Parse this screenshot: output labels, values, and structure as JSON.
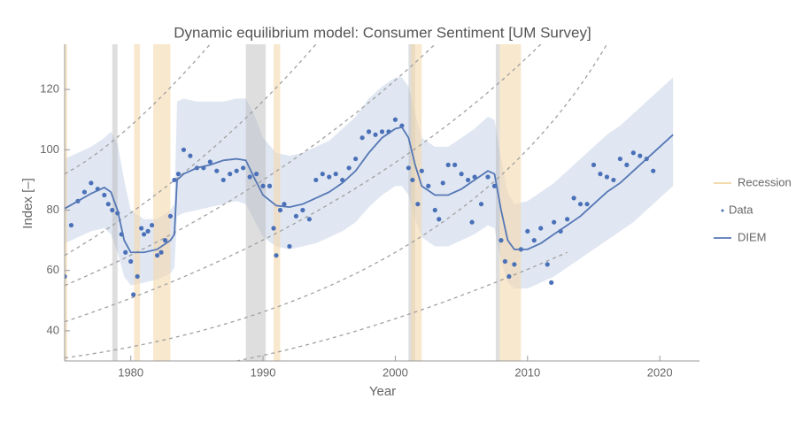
{
  "chart_data": {
    "type": "line",
    "title": "Dynamic equilibrium model: Consumer Sentiment [UM Survey]",
    "x_label": "Year",
    "y_label": "Index [–]",
    "xlim": [
      1975,
      2023
    ],
    "ylim": [
      30,
      135
    ],
    "xticks": [
      1980,
      1990,
      2000,
      2010,
      2020
    ],
    "yticks": [
      40,
      60,
      80,
      100,
      120
    ],
    "legend": "right",
    "recessions": {
      "name": "Recession",
      "color": "#f3d9ae",
      "intervals": [
        [
          1975.0,
          1975.2
        ],
        [
          1980.25,
          1980.7
        ],
        [
          1981.7,
          1983.0
        ],
        [
          1990.8,
          1991.3
        ],
        [
          2001.2,
          2002.0
        ],
        [
          2007.9,
          2009.5
        ]
      ]
    },
    "shocks": {
      "color": "#b5b5b5",
      "intervals": [
        [
          1978.6,
          1979.0
        ],
        [
          1988.7,
          1990.2
        ],
        [
          2001.0,
          2001.5
        ],
        [
          2007.6,
          2007.9
        ]
      ]
    },
    "band": {
      "color": "#dbe3f0",
      "x": [
        1975,
        1976,
        1977,
        1978,
        1978.5,
        1979,
        1979.5,
        1980,
        1981,
        1982,
        1983,
        1983.3,
        1983.5,
        1984,
        1985,
        1986,
        1987,
        1988,
        1988.7,
        1989.3,
        1990,
        1991,
        1992,
        1993,
        1994,
        1995,
        1996,
        1997,
        1998,
        1999,
        2000,
        2000.5,
        2001,
        2001.5,
        2002,
        2003,
        2004,
        2005,
        2006,
        2007,
        2007.5,
        2008,
        2008.5,
        2009,
        2010,
        2011,
        2012,
        2013,
        2014,
        2015,
        2016,
        2017,
        2018,
        2019,
        2020,
        2021
      ],
      "upper": [
        97,
        99,
        101,
        104,
        106,
        102,
        90,
        80,
        77,
        77,
        80,
        82,
        116,
        117,
        116,
        116,
        116,
        117,
        117,
        112,
        104,
        99,
        98,
        99,
        101,
        103,
        107,
        111,
        117,
        121,
        124,
        124,
        121,
        112,
        104,
        101,
        101,
        104,
        107,
        111,
        110,
        97,
        86,
        82,
        83,
        86,
        89,
        93,
        97,
        101,
        105,
        108,
        112,
        116,
        120,
        124
      ],
      "lower": [
        69,
        71,
        73,
        74,
        72,
        66,
        58,
        55,
        56,
        57,
        59,
        61,
        78,
        79,
        80,
        81,
        82,
        83,
        82,
        77,
        71,
        68,
        67,
        68,
        69,
        71,
        73,
        76,
        81,
        85,
        88,
        88,
        85,
        77,
        71,
        68,
        68,
        70,
        72,
        75,
        74,
        63,
        56,
        54,
        54,
        56,
        58,
        61,
        64,
        67,
        70,
        73,
        76,
        80,
        84,
        88
      ]
    },
    "guides": {
      "color": "#a0a0a0",
      "curves": [
        {
          "x": [
            1975,
            1980,
            1986
          ],
          "values": [
            92,
            108,
            135
          ]
        },
        {
          "x": [
            1975,
            1985,
            1994
          ],
          "values": [
            65,
            96,
            135
          ]
        },
        {
          "x": [
            1975,
            1990,
            2003
          ],
          "values": [
            55,
            90,
            135
          ]
        },
        {
          "x": [
            1975,
            1995,
            2011
          ],
          "values": [
            43,
            82,
            135
          ]
        },
        {
          "x": [
            1975,
            2000,
            2016
          ],
          "values": [
            31,
            66,
            135
          ]
        },
        {
          "x": [
            1988,
            2000,
            2013
          ],
          "values": [
            30,
            44,
            66
          ]
        }
      ]
    },
    "series": [
      {
        "name": "Data",
        "color": "#4a70b8",
        "x": [
          1975.0,
          1975.5,
          1976,
          1976.5,
          1977,
          1977.5,
          1978,
          1978.3,
          1978.6,
          1979,
          1979.3,
          1979.6,
          1980,
          1980.2,
          1980.5,
          1980.8,
          1981,
          1981.3,
          1981.6,
          1982,
          1982.3,
          1982.6,
          1983,
          1983.3,
          1983.6,
          1984,
          1984.5,
          1985,
          1985.5,
          1986,
          1986.5,
          1987,
          1987.5,
          1988,
          1988.5,
          1989,
          1989.5,
          1990,
          1990.5,
          1990.8,
          1991,
          1991.3,
          1991.6,
          1992,
          1992.5,
          1993,
          1993.5,
          1994,
          1994.5,
          1995,
          1995.5,
          1996,
          1996.5,
          1997,
          1997.5,
          1998,
          1998.5,
          1999,
          1999.5,
          2000,
          2000.5,
          2001,
          2001.3,
          2001.7,
          2002,
          2002.5,
          2003,
          2003.3,
          2003.6,
          2004,
          2004.5,
          2005,
          2005.5,
          2005.8,
          2006,
          2006.5,
          2007,
          2007.5,
          2008,
          2008.3,
          2008.6,
          2009,
          2009.5,
          2010,
          2010.5,
          2011,
          2011.5,
          2011.8,
          2012,
          2012.5,
          2013,
          2013.5,
          2014,
          2014.5,
          2015,
          2015.5,
          2016,
          2016.5,
          2017,
          2017.5,
          2018,
          2018.5,
          2019,
          2019.5
        ],
        "values": [
          58,
          75,
          83,
          86,
          89,
          87,
          85,
          82,
          80,
          79,
          72,
          66,
          63,
          52,
          58,
          74,
          72,
          73,
          75,
          65,
          66,
          70,
          78,
          90,
          92,
          100,
          98,
          94,
          94,
          96,
          93,
          90,
          92,
          93,
          94,
          91,
          92,
          88,
          88,
          74,
          65,
          80,
          82,
          68,
          78,
          80,
          77,
          90,
          92,
          91,
          92,
          90,
          94,
          97,
          104,
          106,
          105,
          106,
          106,
          110,
          108,
          94,
          90,
          82,
          93,
          88,
          80,
          77,
          89,
          95,
          95,
          92,
          90,
          76,
          91,
          82,
          91,
          88,
          70,
          63,
          58,
          62,
          67,
          73,
          70,
          74,
          62,
          56,
          76,
          73,
          77,
          84,
          82,
          82,
          95,
          92,
          91,
          90,
          97,
          95,
          99,
          98,
          97,
          93
        ]
      },
      {
        "name": "DIEM",
        "color": "#5577b5",
        "x": [
          1975,
          1976,
          1977,
          1978,
          1978.5,
          1979,
          1979.5,
          1980,
          1981,
          1982,
          1983,
          1983.3,
          1983.5,
          1984,
          1985,
          1986,
          1987,
          1988,
          1988.7,
          1989.3,
          1990,
          1991,
          1992,
          1993,
          1994,
          1995,
          1996,
          1997,
          1998,
          1999,
          2000,
          2000.5,
          2001,
          2001.5,
          2002,
          2003,
          2004,
          2005,
          2006,
          2007,
          2007.5,
          2008,
          2008.5,
          2009,
          2010,
          2011,
          2012,
          2013,
          2014,
          2015,
          2016,
          2017,
          2018,
          2019,
          2020,
          2021
        ],
        "values": [
          80.5,
          83,
          85.5,
          87.5,
          86,
          80,
          70,
          66,
          66,
          67,
          70,
          72,
          90,
          92,
          94,
          95,
          96.5,
          97,
          96.5,
          91,
          85,
          81.5,
          81,
          82,
          84,
          86,
          89,
          93,
          99,
          104,
          107,
          107.5,
          104,
          95,
          88,
          85,
          85,
          87,
          90,
          93,
          92,
          80,
          70,
          67,
          67,
          69,
          72,
          75,
          78,
          82,
          86,
          89,
          93,
          97,
          101,
          105
        ]
      }
    ]
  }
}
